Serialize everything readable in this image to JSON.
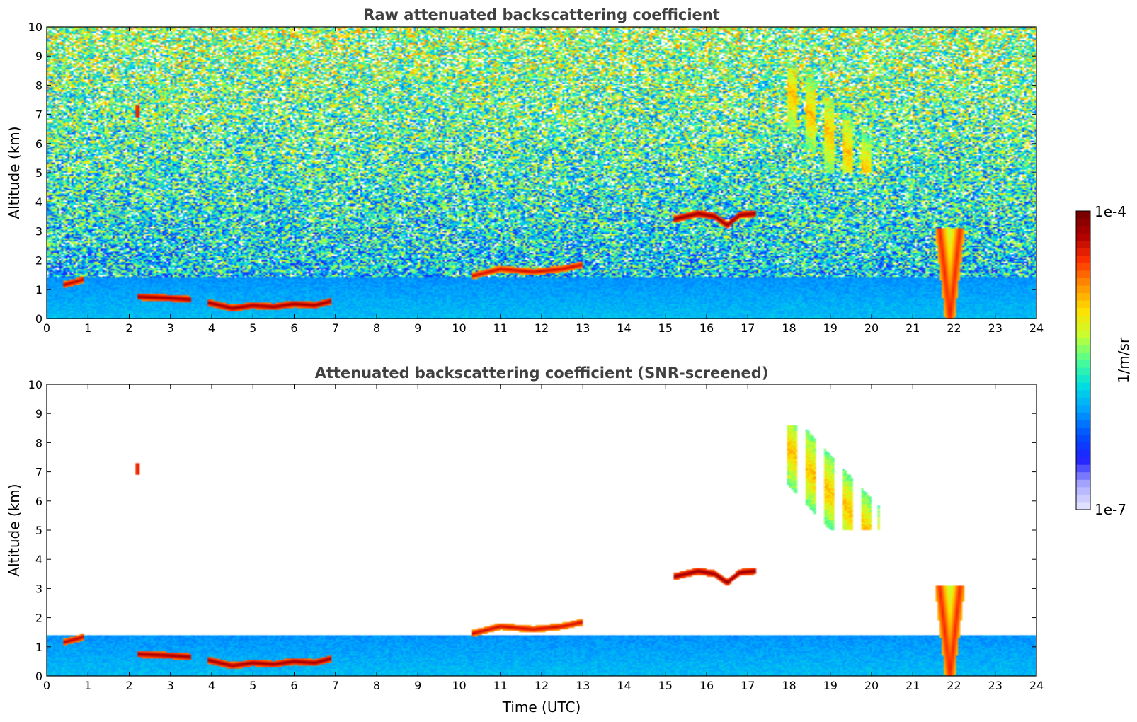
{
  "chart_data": [
    {
      "type": "heatmap",
      "title": "Raw attenuated backscattering coefficient",
      "xlabel": "",
      "ylabel": "Altitude (km)",
      "xlim": [
        0,
        24
      ],
      "ylim": [
        0,
        10
      ],
      "xticks": [
        "0",
        "1",
        "2",
        "3",
        "4",
        "5",
        "6",
        "7",
        "8",
        "9",
        "10",
        "11",
        "12",
        "13",
        "14",
        "15",
        "16",
        "17",
        "18",
        "19",
        "20",
        "21",
        "22",
        "23",
        "24"
      ],
      "yticks": [
        "0",
        "1",
        "2",
        "3",
        "4",
        "5",
        "6",
        "7",
        "8",
        "9",
        "10"
      ],
      "grid": false,
      "features": [
        {
          "kind": "boundary-layer",
          "x0": 0.0,
          "x1": 24.0,
          "y0": 0.0,
          "y1": 1.4,
          "level": 0.32
        },
        {
          "kind": "cloud-layer",
          "points": [
            [
              0.4,
              1.15
            ],
            [
              0.8,
              1.3
            ],
            [
              0.9,
              1.35
            ]
          ],
          "level": 0.92
        },
        {
          "kind": "cloud-layer",
          "points": [
            [
              2.2,
              0.75
            ],
            [
              3.0,
              0.7
            ],
            [
              3.5,
              0.65
            ]
          ],
          "level": 0.95
        },
        {
          "kind": "cloud-layer",
          "points": [
            [
              3.9,
              0.55
            ],
            [
              4.5,
              0.35
            ],
            [
              5.0,
              0.45
            ],
            [
              5.5,
              0.4
            ],
            [
              6.0,
              0.5
            ],
            [
              6.5,
              0.45
            ],
            [
              6.9,
              0.6
            ]
          ],
          "level": 0.95
        },
        {
          "kind": "cloud-layer",
          "points": [
            [
              10.3,
              1.45
            ],
            [
              11.0,
              1.7
            ],
            [
              11.8,
              1.6
            ],
            [
              12.5,
              1.7
            ],
            [
              13.0,
              1.85
            ]
          ],
          "level": 0.9
        },
        {
          "kind": "cloud-layer",
          "points": [
            [
              15.2,
              3.4
            ],
            [
              15.8,
              3.6
            ],
            [
              16.2,
              3.5
            ],
            [
              16.5,
              3.2
            ],
            [
              16.8,
              3.55
            ],
            [
              17.2,
              3.6
            ]
          ],
          "level": 0.96
        },
        {
          "kind": "cirrus",
          "x0": 17.8,
          "x1": 20.2,
          "y0": 5.0,
          "y1": 8.6,
          "level": 0.7
        },
        {
          "kind": "rain-shaft",
          "x": 21.9,
          "y0": 0.0,
          "y1": 3.1,
          "level": 0.85
        },
        {
          "kind": "cloud-spot",
          "x": 2.2,
          "y": 7.1,
          "level": 0.85
        }
      ]
    },
    {
      "type": "heatmap",
      "title": "Attenuated backscattering coefficient (SNR-screened)",
      "xlabel": "Time (UTC)",
      "ylabel": "Altitude (km)",
      "xlim": [
        0,
        24
      ],
      "ylim": [
        0,
        10
      ],
      "xticks": [
        "0",
        "1",
        "2",
        "3",
        "4",
        "5",
        "6",
        "7",
        "8",
        "9",
        "10",
        "11",
        "12",
        "13",
        "14",
        "15",
        "16",
        "17",
        "18",
        "19",
        "20",
        "21",
        "22",
        "23",
        "24"
      ],
      "yticks": [
        "0",
        "1",
        "2",
        "3",
        "4",
        "5",
        "6",
        "7",
        "8",
        "9",
        "10"
      ],
      "grid": false,
      "screened": true,
      "features": [
        {
          "kind": "boundary-layer",
          "x0": 0.0,
          "x1": 24.0,
          "y0": 0.0,
          "y1": 1.4,
          "level": 0.32
        },
        {
          "kind": "cloud-layer",
          "points": [
            [
              0.4,
              1.15
            ],
            [
              0.8,
              1.3
            ],
            [
              0.9,
              1.35
            ]
          ],
          "level": 0.92
        },
        {
          "kind": "cloud-layer",
          "points": [
            [
              2.2,
              0.75
            ],
            [
              3.0,
              0.7
            ],
            [
              3.5,
              0.65
            ]
          ],
          "level": 0.95
        },
        {
          "kind": "cloud-layer",
          "points": [
            [
              3.9,
              0.55
            ],
            [
              4.5,
              0.35
            ],
            [
              5.0,
              0.45
            ],
            [
              5.5,
              0.4
            ],
            [
              6.0,
              0.5
            ],
            [
              6.5,
              0.45
            ],
            [
              6.9,
              0.6
            ]
          ],
          "level": 0.95
        },
        {
          "kind": "cloud-layer",
          "points": [
            [
              10.3,
              1.45
            ],
            [
              11.0,
              1.7
            ],
            [
              11.8,
              1.6
            ],
            [
              12.5,
              1.7
            ],
            [
              13.0,
              1.85
            ]
          ],
          "level": 0.9
        },
        {
          "kind": "cloud-layer",
          "points": [
            [
              15.2,
              3.4
            ],
            [
              15.8,
              3.6
            ],
            [
              16.2,
              3.5
            ],
            [
              16.5,
              3.2
            ],
            [
              16.8,
              3.55
            ],
            [
              17.2,
              3.6
            ]
          ],
          "level": 0.96
        },
        {
          "kind": "cirrus",
          "x0": 17.8,
          "x1": 20.2,
          "y0": 5.0,
          "y1": 8.6,
          "level": 0.7
        },
        {
          "kind": "rain-shaft",
          "x": 21.9,
          "y0": 0.0,
          "y1": 3.1,
          "level": 0.85
        },
        {
          "kind": "cloud-spot",
          "x": 2.2,
          "y": 7.1,
          "level": 0.85
        }
      ]
    }
  ],
  "colorbar": {
    "label": "1/m/sr",
    "max_label": "1e-4",
    "min_label": "1e-7",
    "min": 1e-07,
    "max": 0.0001,
    "scale": "log",
    "colormap": "jet",
    "colors": [
      "#e8e8ff",
      "#a9a9ff",
      "#2020ff",
      "#0050ff",
      "#00a0ff",
      "#00e0e0",
      "#50ff90",
      "#c8ff30",
      "#ffe000",
      "#ff9000",
      "#ff3000",
      "#b00000",
      "#700000"
    ]
  }
}
